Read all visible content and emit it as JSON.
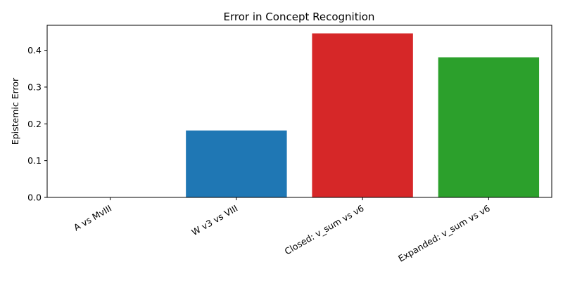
{
  "chart_data": {
    "type": "bar",
    "title": "Error in Concept Recognition",
    "xlabel": "",
    "ylabel": "Epistemic Error",
    "categories": [
      "A vs MvIII",
      "W v3 vs VIII",
      "Closed: v_sum vs v6",
      "Expanded: v_sum vs v6"
    ],
    "values": [
      0.0,
      0.182,
      0.446,
      0.381
    ],
    "colors": [
      "#1f77b4",
      "#1f77b4",
      "#d62728",
      "#2ca02c"
    ],
    "ylim": [
      0,
      0.468
    ],
    "yticks": [
      0.0,
      0.1,
      0.2,
      0.3,
      0.4
    ],
    "ytick_labels": [
      "0.0",
      "0.1",
      "0.2",
      "0.3",
      "0.4"
    ],
    "grid": false,
    "legend": null
  }
}
